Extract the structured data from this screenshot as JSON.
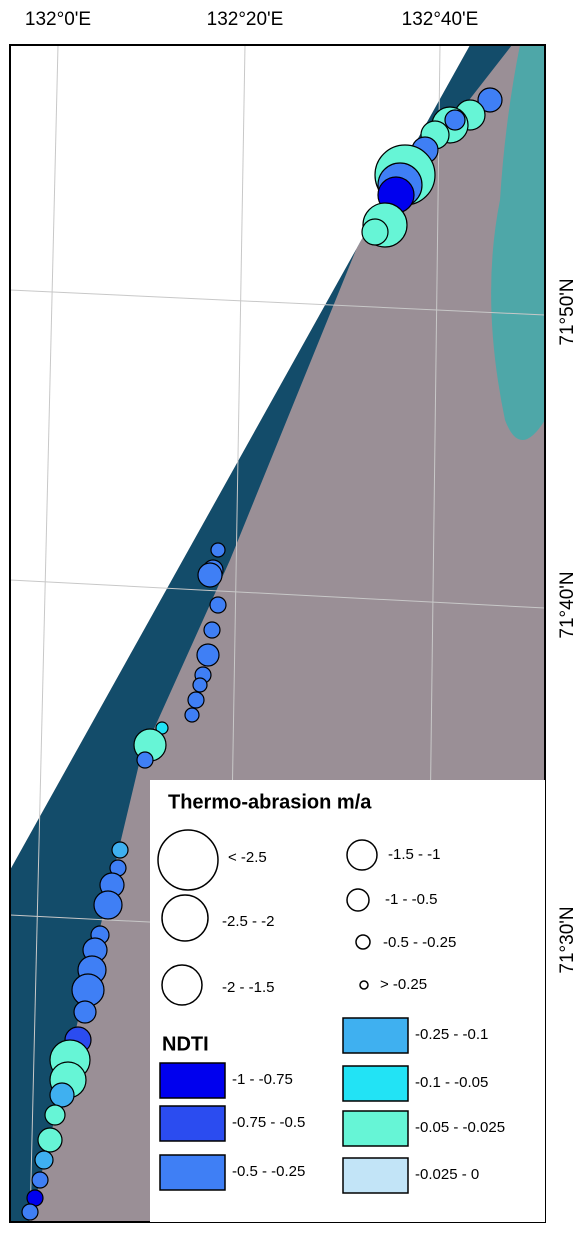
{
  "map": {
    "lon_labels": [
      "132°0'E",
      "132°20'E",
      "132°40'E"
    ],
    "lat_labels": [
      "71°50'N",
      "71°40'N",
      "71°30'N"
    ],
    "legend": {
      "size_title": "Thermo-abrasion m/a",
      "size_classes": [
        "< -2.5",
        "-2.5 - -2",
        "-2 - -1.5",
        "-1.5 - -1",
        "-1 - -0.5",
        "-0.5 - -0.25",
        "> -0.25"
      ],
      "color_title": "NDTI",
      "color_classes": [
        {
          "label": "-1 - -0.75",
          "color": "#0000ee"
        },
        {
          "label": "-0.75 - -0.5",
          "color": "#2b4cf0"
        },
        {
          "label": "-0.5 - -0.25",
          "color": "#3f7ff5"
        },
        {
          "label": "-0.25 - -0.1",
          "color": "#3fb0f0"
        },
        {
          "label": "-0.1 - -0.05",
          "color": "#22e3f5"
        },
        {
          "label": "-0.05 - -0.025",
          "color": "#66f5d6"
        },
        {
          "label": "-0.025 - 0",
          "color": "#c2e4f7"
        }
      ]
    }
  }
}
